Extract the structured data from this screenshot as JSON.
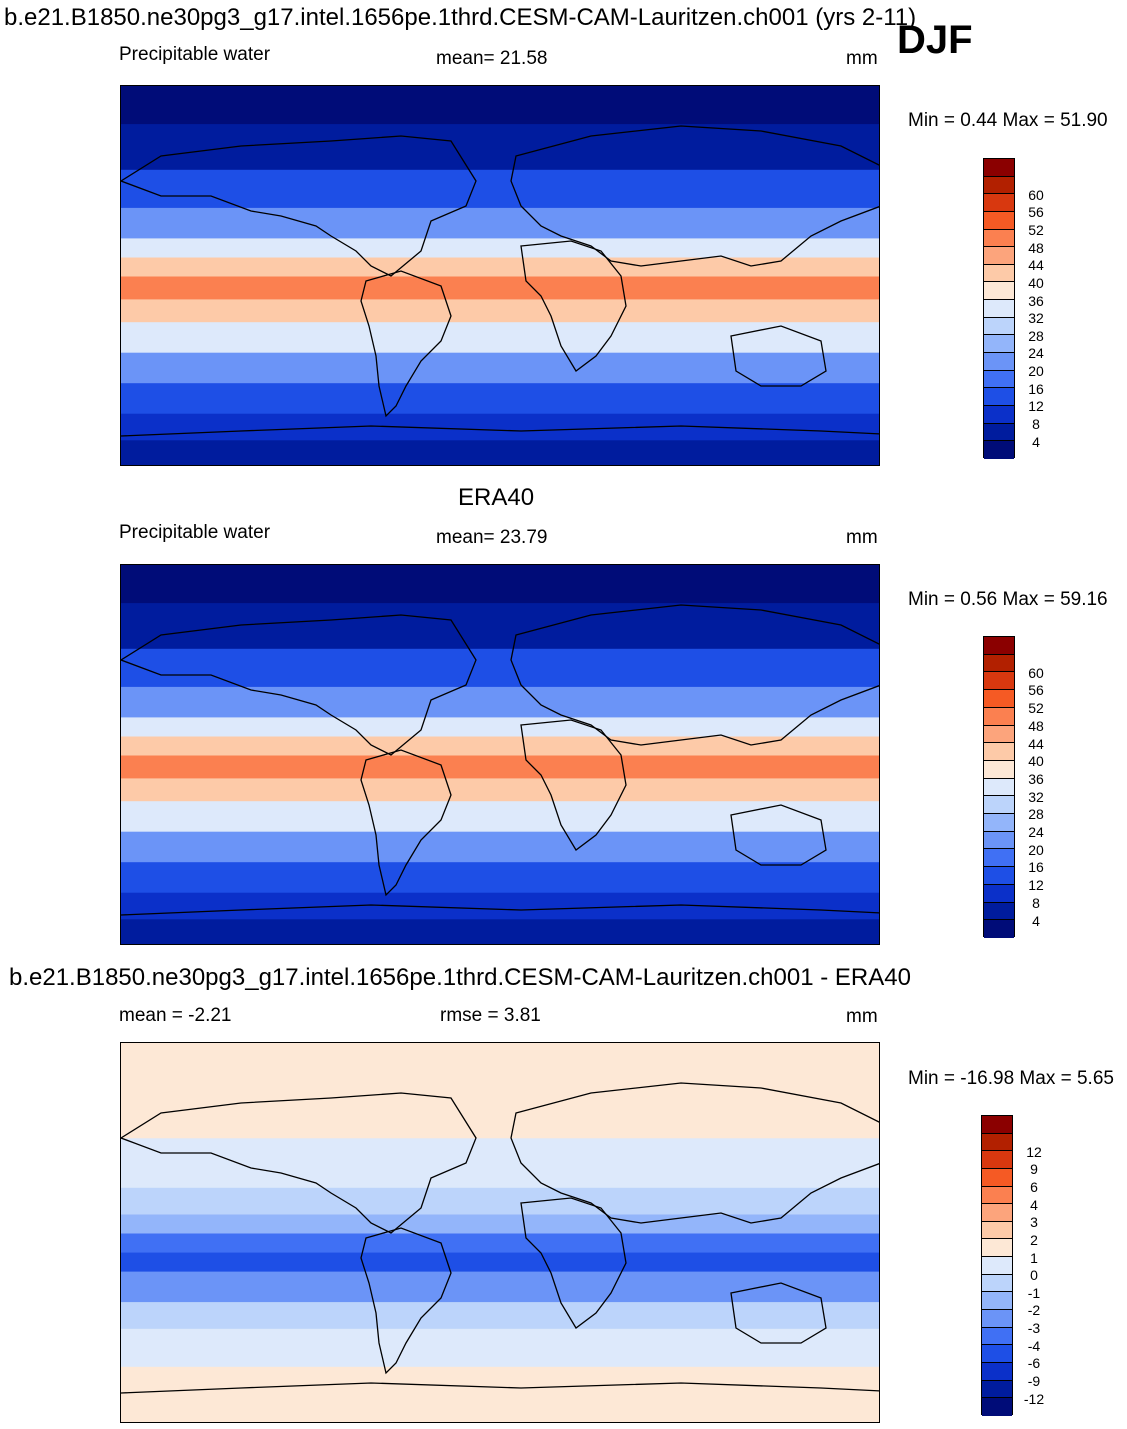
{
  "header": {
    "run_title": "b.e21.B1850.ne30pg3_g17.intel.1656pe.1thrd.CESM-CAM-Lauritzen.ch001 (yrs 2-11)",
    "season": "DJF"
  },
  "panels": [
    {
      "id": "model",
      "title": "",
      "left_label": "Precipitable water",
      "center_label": "mean=  21.58",
      "units": "mm",
      "minmax": "Min =   0.44 Max =  51.90",
      "colorbar": {
        "colors": [
          "#8b0000",
          "#b22000",
          "#d8380f",
          "#f55a24",
          "#fb8050",
          "#fca47c",
          "#fdcaa8",
          "#fde8d6",
          "#dde9fb",
          "#bcd4fb",
          "#93b5fa",
          "#6b94f7",
          "#4070f4",
          "#1e4fe6",
          "#0b30c9",
          "#001c9e",
          "#000c78"
        ],
        "ticks": [
          "60",
          "56",
          "52",
          "48",
          "44",
          "40",
          "36",
          "32",
          "28",
          "24",
          "20",
          "16",
          "12",
          "8",
          "4"
        ]
      }
    },
    {
      "id": "obs",
      "title": "ERA40",
      "left_label": "Precipitable water",
      "center_label": "mean=  23.79",
      "units": "mm",
      "minmax": "Min =   0.56 Max =  59.16",
      "colorbar": {
        "colors": [
          "#8b0000",
          "#b22000",
          "#d8380f",
          "#f55a24",
          "#fb8050",
          "#fca47c",
          "#fdcaa8",
          "#fde8d6",
          "#dde9fb",
          "#bcd4fb",
          "#93b5fa",
          "#6b94f7",
          "#4070f4",
          "#1e4fe6",
          "#0b30c9",
          "#001c9e",
          "#000c78"
        ],
        "ticks": [
          "60",
          "56",
          "52",
          "48",
          "44",
          "40",
          "36",
          "32",
          "28",
          "24",
          "20",
          "16",
          "12",
          "8",
          "4"
        ]
      }
    },
    {
      "id": "diff",
      "title": "b.e21.B1850.ne30pg3_g17.intel.1656pe.1thrd.CESM-CAM-Lauritzen.ch001 - ERA40",
      "left_label": "mean =  -2.21",
      "center_label": "rmse =    3.81",
      "units": "mm",
      "minmax": "Min = -16.98 Max =    5.65",
      "colorbar": {
        "colors": [
          "#8b0000",
          "#b22000",
          "#d8380f",
          "#f55a24",
          "#fb8050",
          "#fca47c",
          "#fdcaa8",
          "#fde8d6",
          "#dde9fb",
          "#bcd4fb",
          "#93b5fa",
          "#6b94f7",
          "#4070f4",
          "#1e4fe6",
          "#0b30c9",
          "#001c9e",
          "#000c78"
        ],
        "ticks": [
          "12",
          "9",
          "6",
          "4",
          "3",
          "2",
          "1",
          "0",
          "-1",
          "-2",
          "-3",
          "-4",
          "-6",
          "-9",
          "-12"
        ]
      }
    }
  ]
}
